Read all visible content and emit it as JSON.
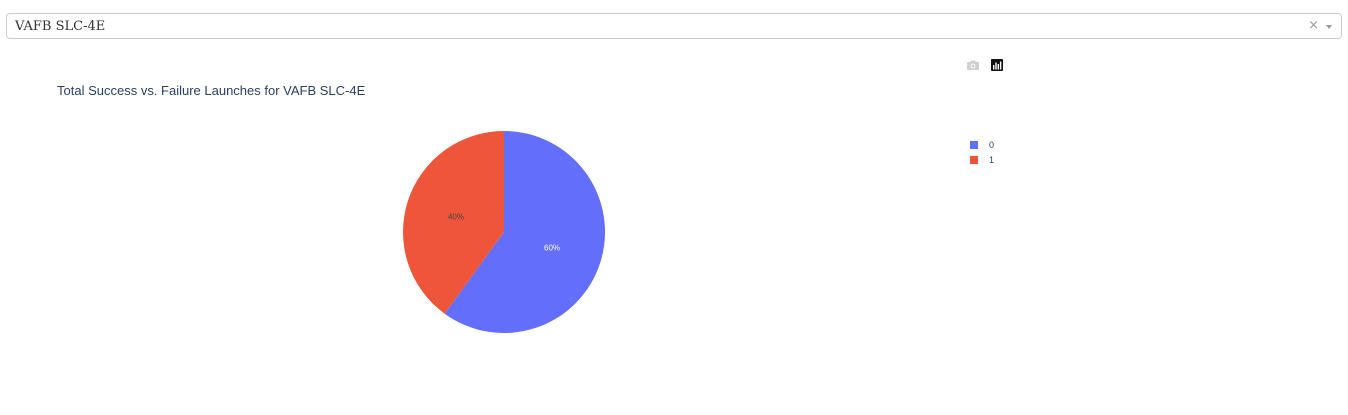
{
  "dropdown": {
    "selected": "VAFB SLC-4E",
    "clear_symbol": "×"
  },
  "modebar": {
    "buttons": [
      {
        "name": "camera-icon"
      },
      {
        "name": "plotly-logo-icon"
      }
    ]
  },
  "colors": {
    "series0": "#636efa",
    "series1": "#ef553b",
    "title": "#2a3f5f"
  },
  "chart_data": {
    "type": "pie",
    "title": "Total Success vs. Failure Launches for VAFB SLC-4E",
    "labels": [
      "0",
      "1"
    ],
    "values": [
      60,
      40
    ],
    "text_labels": [
      "60%",
      "40%"
    ],
    "colors": [
      "#636efa",
      "#ef553b"
    ],
    "legend_position": "top-right",
    "direction": "clockwise",
    "start": "12 o'clock"
  }
}
